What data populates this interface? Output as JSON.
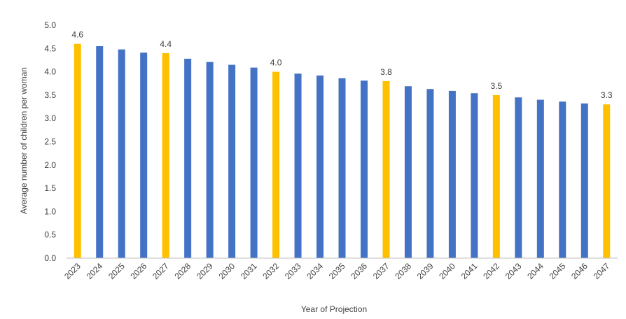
{
  "chart_data": {
    "type": "bar",
    "title": "",
    "xlabel": "Year of Projection",
    "ylabel": "Average number of children per woman",
    "ylim": [
      0,
      5
    ],
    "y_ticks": [
      "0.0",
      "0.5",
      "1.0",
      "1.5",
      "2.0",
      "2.5",
      "3.0",
      "3.5",
      "4.0",
      "4.5",
      "5.0"
    ],
    "grid": false,
    "legend": "none",
    "categories": [
      "2023",
      "2024",
      "2025",
      "2026",
      "2027",
      "2028",
      "2029",
      "2030",
      "2031",
      "2032",
      "2033",
      "2034",
      "2035",
      "2036",
      "2037",
      "2038",
      "2039",
      "2040",
      "2041",
      "2042",
      "2043",
      "2044",
      "2045",
      "2046",
      "2047"
    ],
    "values": [
      4.6,
      4.55,
      4.48,
      4.41,
      4.4,
      4.28,
      4.21,
      4.15,
      4.09,
      4.0,
      3.96,
      3.92,
      3.86,
      3.81,
      3.8,
      3.69,
      3.63,
      3.59,
      3.54,
      3.5,
      3.45,
      3.4,
      3.36,
      3.32,
      3.3
    ],
    "highlighted_years": [
      "2023",
      "2027",
      "2032",
      "2037",
      "2042",
      "2047"
    ],
    "data_labels": {
      "2023": "4.6",
      "2027": "4.4",
      "2032": "4.0",
      "2037": "3.8",
      "2042": "3.5",
      "2047": "3.3"
    },
    "colors": {
      "bar": "#4472C4",
      "highlight": "#FFC000",
      "axis": "#BFBFBF",
      "text": "#404040"
    }
  }
}
